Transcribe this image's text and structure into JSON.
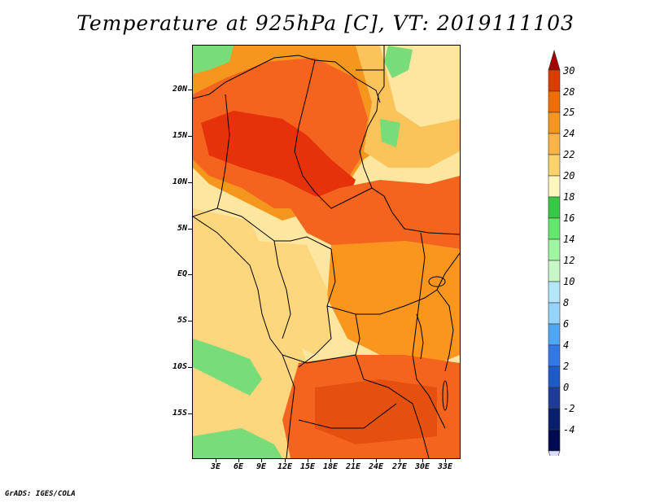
{
  "title": "Temperature at 925hPa [C], VT: 2019111103",
  "footer": "GrADS: IGES/COLA",
  "axes": {
    "lat_labels": [
      "20N",
      "15N",
      "10N",
      "5N",
      "EQ",
      "5S",
      "10S",
      "15S"
    ],
    "lon_labels": [
      "3E",
      "6E",
      "9E",
      "12E",
      "15E",
      "18E",
      "21E",
      "24E",
      "27E",
      "30E",
      "33E"
    ]
  },
  "colorbar": {
    "labels": [
      "30",
      "28",
      "25",
      "24",
      "22",
      "20",
      "18",
      "16",
      "14",
      "12",
      "10",
      "8",
      "6",
      "4",
      "2",
      "0",
      "-2",
      "-4"
    ],
    "colors": [
      "#a50000",
      "#dc3c00",
      "#f06e00",
      "#f5961e",
      "#f8b446",
      "#fad26e",
      "#fff5be",
      "#37c846",
      "#66e66e",
      "#a0f5a0",
      "#c8f8c8",
      "#b4e6fa",
      "#96d2fa",
      "#50a5f5",
      "#3278e6",
      "#1e5ac8",
      "#1e3c96",
      "#0a1e6e",
      "#000a50",
      "#dcdcff"
    ]
  },
  "palette": {
    "deep_red": "#e6320a",
    "red_orange": "#f5641e",
    "orange": "#fa961e",
    "light_orange": "#fbb43c",
    "yellow": "#fdd77d",
    "pale_yellow": "#fde6a0",
    "green": "#3cc85a",
    "light_green": "#78dc78"
  }
}
